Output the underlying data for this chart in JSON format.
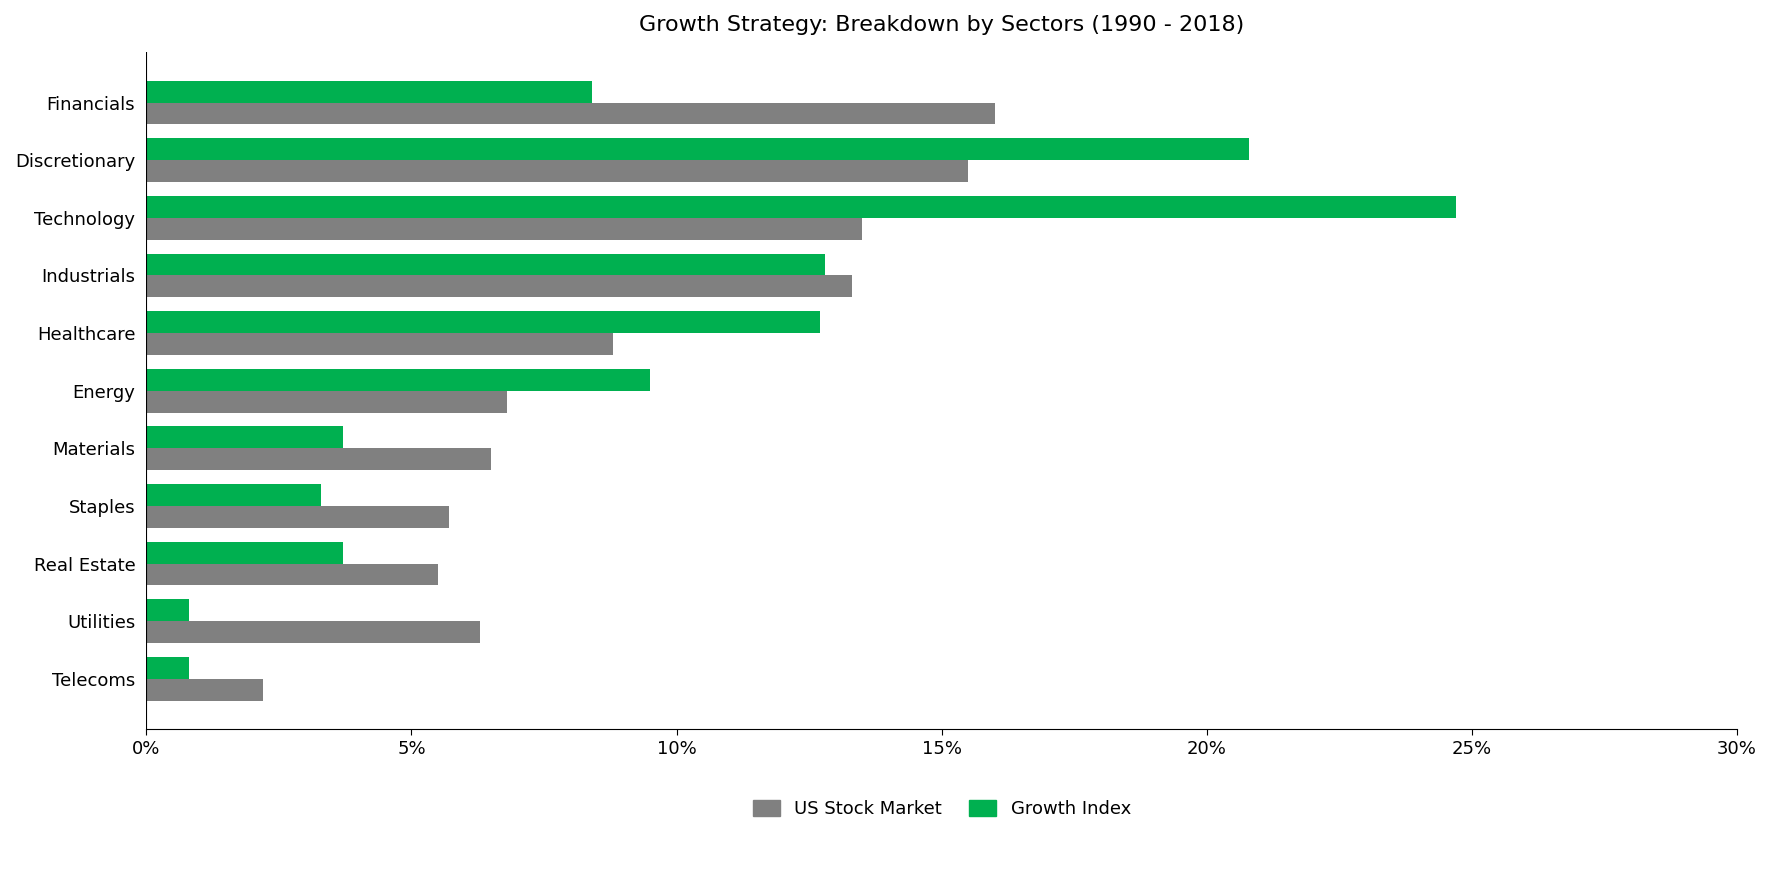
{
  "title": "Growth Strategy: Breakdown by Sectors (1990 - 2018)",
  "categories": [
    "Financials",
    "Discretionary",
    "Technology",
    "Industrials",
    "Healthcare",
    "Energy",
    "Materials",
    "Staples",
    "Real Estate",
    "Utilities",
    "Telecoms"
  ],
  "us_stock_market": [
    0.16,
    0.155,
    0.135,
    0.133,
    0.088,
    0.068,
    0.065,
    0.057,
    0.055,
    0.063,
    0.022
  ],
  "growth_index": [
    0.084,
    0.208,
    0.247,
    0.128,
    0.127,
    0.095,
    0.037,
    0.033,
    0.037,
    0.008,
    0.008
  ],
  "us_color": "#808080",
  "growth_color": "#00b050",
  "xlim": [
    0,
    0.3
  ],
  "xticks": [
    0.0,
    0.05,
    0.1,
    0.15,
    0.2,
    0.25,
    0.3
  ],
  "xticklabels": [
    "0%",
    "5%",
    "10%",
    "15%",
    "20%",
    "25%",
    "30%"
  ],
  "bar_height": 0.38,
  "title_fontsize": 16,
  "tick_fontsize": 13,
  "label_fontsize": 13,
  "legend_fontsize": 13,
  "background_color": "#ffffff"
}
